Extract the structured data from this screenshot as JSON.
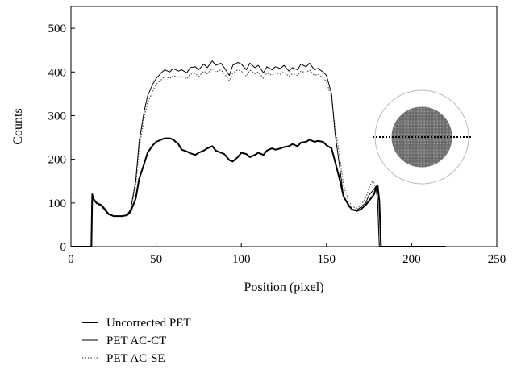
{
  "chart_data": {
    "type": "line",
    "title": "",
    "xlabel": "Position (pixel)",
    "ylabel": "Counts",
    "xlim": [
      0,
      250
    ],
    "ylim": [
      0,
      550
    ],
    "xticks": [
      0,
      50,
      100,
      150,
      200,
      250
    ],
    "yticks": [
      0,
      100,
      200,
      300,
      400,
      500
    ],
    "grid": false,
    "legend_position": "bottom-left, below plot",
    "inset": "circular phantom image with horizontal dotted profile line",
    "series": [
      {
        "name": "Uncorrected PET",
        "style": "thick-solid",
        "color": "#000000",
        "x": [
          0,
          12,
          12.5,
          13,
          15,
          18,
          20,
          22,
          25,
          30,
          33,
          35,
          38,
          40,
          43,
          45,
          48,
          50,
          55,
          58,
          60,
          63,
          65,
          68,
          70,
          73,
          75,
          78,
          80,
          83,
          85,
          88,
          90,
          93,
          95,
          98,
          100,
          103,
          105,
          108,
          110,
          113,
          115,
          118,
          120,
          123,
          125,
          128,
          130,
          133,
          135,
          138,
          140,
          143,
          145,
          148,
          150,
          153,
          155,
          158,
          160,
          163,
          165,
          168,
          170,
          173,
          175,
          178,
          179,
          180,
          181,
          182,
          190,
          220
        ],
        "y": [
          0,
          0,
          120,
          110,
          100,
          95,
          85,
          75,
          70,
          70,
          72,
          80,
          110,
          155,
          190,
          215,
          232,
          240,
          248,
          248,
          245,
          235,
          222,
          218,
          214,
          210,
          215,
          220,
          225,
          230,
          220,
          215,
          212,
          198,
          195,
          205,
          215,
          212,
          205,
          210,
          215,
          210,
          220,
          225,
          222,
          225,
          228,
          230,
          235,
          230,
          238,
          240,
          245,
          240,
          242,
          240,
          232,
          225,
          195,
          150,
          115,
          95,
          85,
          82,
          85,
          95,
          105,
          120,
          135,
          140,
          105,
          0,
          0,
          0
        ]
      },
      {
        "name": "PET AC-CT",
        "style": "solid",
        "color": "#000000",
        "x": [
          0,
          12,
          12.5,
          13,
          15,
          18,
          20,
          22,
          25,
          30,
          33,
          35,
          38,
          40,
          43,
          45,
          48,
          50,
          53,
          55,
          58,
          60,
          63,
          65,
          68,
          70,
          73,
          75,
          78,
          80,
          83,
          85,
          88,
          90,
          93,
          95,
          98,
          100,
          103,
          105,
          108,
          110,
          113,
          115,
          118,
          120,
          123,
          125,
          128,
          130,
          133,
          135,
          138,
          140,
          143,
          145,
          148,
          150,
          153,
          155,
          158,
          160,
          163,
          165,
          168,
          170,
          173,
          175,
          178,
          179,
          180,
          181,
          182,
          190,
          220
        ],
        "y": [
          0,
          0,
          115,
          108,
          100,
          93,
          83,
          74,
          70,
          70,
          73,
          85,
          150,
          240,
          310,
          345,
          372,
          385,
          398,
          405,
          400,
          408,
          402,
          405,
          398,
          410,
          412,
          405,
          418,
          410,
          425,
          415,
          420,
          410,
          392,
          415,
          422,
          418,
          405,
          420,
          410,
          415,
          398,
          412,
          405,
          412,
          408,
          415,
          402,
          410,
          405,
          418,
          412,
          420,
          405,
          408,
          400,
          392,
          350,
          260,
          175,
          115,
          92,
          85,
          84,
          90,
          100,
          118,
          132,
          138,
          105,
          0,
          0,
          0,
          0
        ]
      },
      {
        "name": "PET AC-SE",
        "style": "dotted",
        "color": "#555555",
        "x": [
          0,
          12,
          12.5,
          13,
          15,
          18,
          20,
          22,
          25,
          30,
          33,
          35,
          38,
          40,
          43,
          45,
          48,
          50,
          53,
          55,
          58,
          60,
          63,
          65,
          68,
          70,
          73,
          75,
          78,
          80,
          83,
          85,
          88,
          90,
          93,
          95,
          98,
          100,
          103,
          105,
          108,
          110,
          113,
          115,
          118,
          120,
          123,
          125,
          128,
          130,
          133,
          135,
          138,
          140,
          143,
          145,
          148,
          150,
          153,
          155,
          158,
          160,
          163,
          165,
          168,
          170,
          173,
          175,
          177,
          178,
          180,
          181,
          182,
          190,
          220
        ],
        "y": [
          0,
          0,
          112,
          105,
          98,
          92,
          82,
          73,
          70,
          70,
          73,
          82,
          140,
          225,
          295,
          330,
          355,
          372,
          382,
          390,
          385,
          392,
          388,
          390,
          384,
          395,
          396,
          390,
          402,
          396,
          408,
          400,
          405,
          396,
          380,
          398,
          405,
          402,
          390,
          404,
          396,
          400,
          385,
          398,
          392,
          398,
          395,
          400,
          390,
          396,
          392,
          402,
          398,
          405,
          392,
          395,
          386,
          378,
          340,
          275,
          200,
          140,
          105,
          92,
          88,
          95,
          110,
          135,
          150,
          145,
          110,
          0,
          0,
          0,
          0
        ]
      }
    ]
  }
}
